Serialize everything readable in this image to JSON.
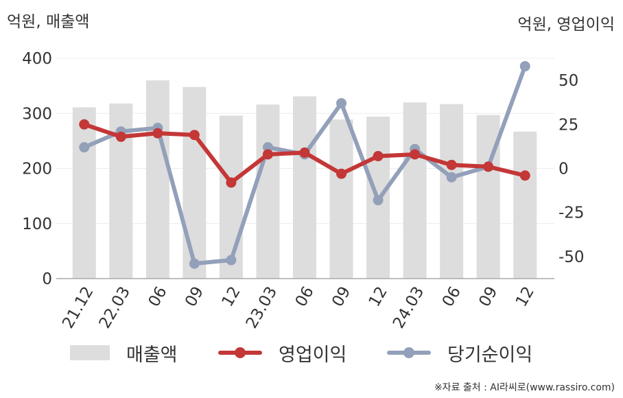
{
  "units": {
    "left": "억원, 매출액",
    "right": "억원, 영업이익"
  },
  "legend": {
    "revenue": "매출액",
    "op_income": "영업이익",
    "net_income": "당기순이익"
  },
  "source": "※자료 출처 : AI라씨로(www.rassiro.com)",
  "colors": {
    "revenue": "#dddddd",
    "op_income": "#c43737",
    "net_income": "#93a0b9"
  },
  "chart_data": {
    "type": "bar+line",
    "categories": [
      "21.12",
      "22.03",
      "06",
      "09",
      "12",
      "23.03",
      "06",
      "09",
      "12",
      "24.03",
      "06",
      "09",
      "12"
    ],
    "y_left": {
      "label": "억원, 매출액",
      "ylim": [
        0,
        400
      ],
      "ticks": [
        0,
        100,
        200,
        300,
        400
      ]
    },
    "y_right": {
      "label": "억원, 영업이익",
      "ylim": [
        -62.5,
        62.5
      ],
      "ticks": [
        -50,
        -25,
        0,
        25,
        50
      ]
    },
    "series": [
      {
        "name": "매출액",
        "type": "bar",
        "axis": "left",
        "values": [
          311,
          318,
          360,
          348,
          296,
          316,
          331,
          289,
          294,
          320,
          317,
          297,
          267
        ]
      },
      {
        "name": "영업이익",
        "type": "line",
        "axis": "right",
        "values": [
          25,
          18,
          20,
          19,
          -8,
          8,
          9,
          -3,
          7,
          8,
          2,
          1,
          -4
        ]
      },
      {
        "name": "당기순이익",
        "type": "line",
        "axis": "right",
        "values": [
          12,
          21,
          23,
          -54,
          -52,
          12,
          8,
          37,
          -18,
          11,
          -5,
          1,
          58
        ]
      }
    ],
    "grid": true,
    "legend_position": "bottom"
  }
}
